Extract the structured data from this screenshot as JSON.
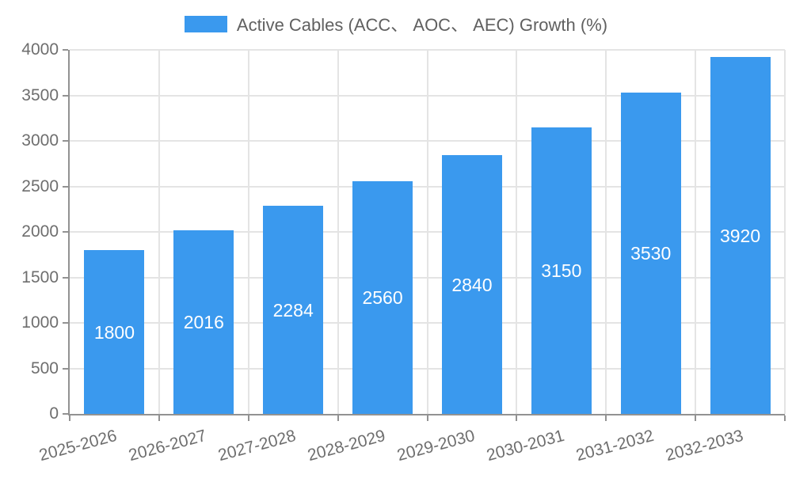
{
  "legend": {
    "label": "Active Cables (ACC、 AOC、 AEC) Growth (%)"
  },
  "chart_data": {
    "type": "bar",
    "title": "Active Cables (ACC、 AOC、 AEC) Growth (%)",
    "categories": [
      "2025-2026",
      "2026-2027",
      "2027-2028",
      "2028-2029",
      "2029-2030",
      "2030-2031",
      "2031-2032",
      "2032-2033"
    ],
    "values": [
      1800,
      2016,
      2284,
      2560,
      2840,
      3150,
      3530,
      3920
    ],
    "xlabel": "",
    "ylabel": "",
    "ylim": [
      0,
      4000
    ],
    "yticks": [
      0,
      500,
      1000,
      1500,
      2000,
      2500,
      3000,
      3500,
      4000
    ],
    "grid": true,
    "legend_position": "top",
    "x_label_rotation_deg": -15,
    "colors": {
      "bar": "#3A99EE",
      "value_label": "#FFFFFF",
      "grid": "#E4E4E4",
      "axis": "#929292",
      "tick_label": "#6E6E6E",
      "legend_text": "#606060"
    }
  }
}
